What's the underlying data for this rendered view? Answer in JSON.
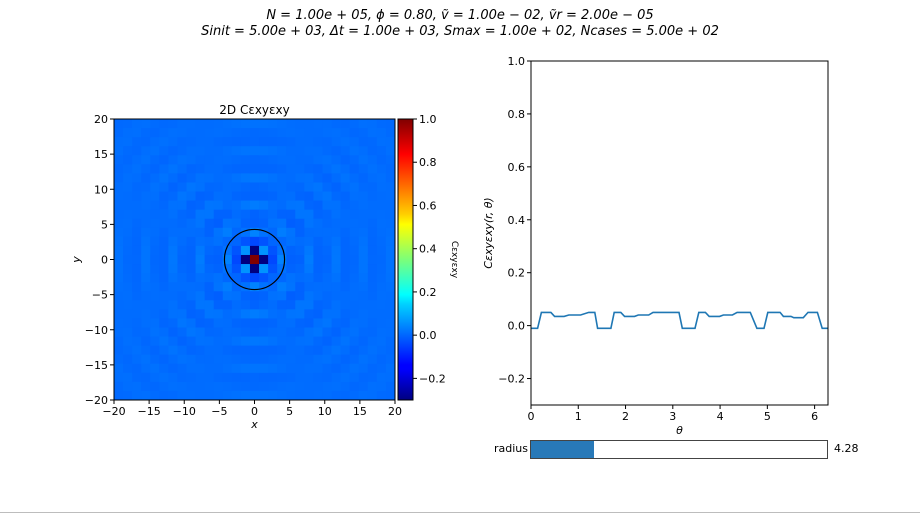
{
  "figure": {
    "suptitle_line1": "N = 1.00e + 05, ϕ = 0.80, ṽ = 1.00e − 02, ṽr = 2.00e − 05",
    "suptitle_line2": "Sinit = 5.00e + 03, Δt = 1.00e + 03, Smax = 1.00e + 02, Ncases = 5.00e + 02"
  },
  "slider": {
    "label": "radius",
    "value": 4.28,
    "value_text": "4.28",
    "min": 0,
    "max": 20,
    "fill_color": "#2879b8"
  },
  "chart_data": [
    {
      "type": "heatmap",
      "title": "2D Cεxyεxy",
      "xlabel": "x",
      "ylabel": "y",
      "xlim": [
        -20,
        20
      ],
      "ylim": [
        -20,
        20
      ],
      "xticks": [
        -20,
        -15,
        -10,
        -5,
        0,
        5,
        10,
        15,
        20
      ],
      "yticks": [
        -20,
        -15,
        -10,
        -5,
        0,
        5,
        10,
        15,
        20
      ],
      "colormap": "jet",
      "colorbar": {
        "label": "Cεxyεxy",
        "range": [
          -0.3,
          1.0
        ],
        "ticks": [
          -0.2,
          0.0,
          0.2,
          0.4,
          0.6,
          0.8,
          1.0
        ]
      },
      "grid_cells": 31,
      "center_value": 1.0,
      "nearest_neighbor_value": -0.3,
      "diagonal_value": 0.05,
      "ring_amplitude": 0.04,
      "background_value": 0.0,
      "circle_radius": 4.28
    },
    {
      "type": "line",
      "xlabel": "θ",
      "ylabel": "Cεxyεxy(r, θ)",
      "xlim": [
        0,
        6.2832
      ],
      "ylim": [
        -0.3,
        1.0
      ],
      "xticks": [
        0,
        1,
        2,
        3,
        4,
        5,
        6
      ],
      "yticks": [
        -0.2,
        0.0,
        0.2,
        0.4,
        0.6,
        0.8,
        1.0
      ],
      "grid": false,
      "line_color": "#1f77b4",
      "series": [
        {
          "x": [
            0.0,
            0.14,
            0.22,
            0.42,
            0.5,
            0.7,
            0.8,
            1.05,
            1.22,
            1.35,
            1.41,
            1.69,
            1.76,
            1.9,
            1.98,
            2.19,
            2.27,
            2.49,
            2.58,
            2.82,
            3.0,
            3.13,
            3.2,
            3.47,
            3.55,
            3.69,
            3.77,
            3.99,
            4.07,
            4.26,
            4.36,
            4.64,
            4.78,
            4.93,
            5.01,
            5.27,
            5.34,
            5.5,
            5.56,
            5.76,
            5.86,
            6.06,
            6.16,
            6.28
          ],
          "y": [
            -0.01,
            -0.01,
            0.05,
            0.05,
            0.035,
            0.035,
            0.04,
            0.04,
            0.05,
            0.05,
            -0.01,
            -0.01,
            0.05,
            0.05,
            0.035,
            0.035,
            0.04,
            0.04,
            0.05,
            0.05,
            0.05,
            0.05,
            -0.01,
            -0.01,
            0.05,
            0.05,
            0.035,
            0.035,
            0.04,
            0.04,
            0.05,
            0.05,
            -0.01,
            -0.01,
            0.05,
            0.05,
            0.035,
            0.035,
            0.03,
            0.03,
            0.05,
            0.05,
            -0.01,
            -0.01
          ]
        }
      ]
    }
  ]
}
